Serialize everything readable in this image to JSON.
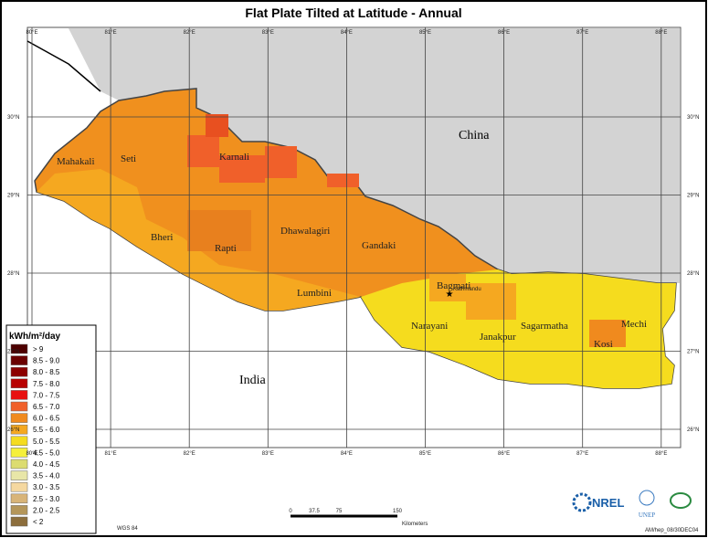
{
  "header": {
    "title": "Flat Plate Tilted at Latitude - Annual"
  },
  "map": {
    "longitudes": [
      "80°E",
      "81°E",
      "82°E",
      "83°E",
      "84°E",
      "85°E",
      "86°E",
      "87°E",
      "88°E"
    ],
    "latitudes": [
      "30°N",
      "29°N",
      "28°N",
      "27°N",
      "26°N"
    ],
    "countries": [
      "China",
      "India"
    ],
    "regions": [
      "Mahakali",
      "Seti",
      "Karnali",
      "Bheri",
      "Rapti",
      "Dhawalagiri",
      "Gandaki",
      "Lumbini",
      "Bagmati",
      "Narayani",
      "Janakpur",
      "Sagarmatha",
      "Kosi",
      "Mechi"
    ],
    "capital": "Kathmandu"
  },
  "legend": {
    "title": "kWh/m²/day",
    "items": [
      {
        "label": "> 9",
        "color": "#4d0000"
      },
      {
        "label": "8.5 - 9.0",
        "color": "#6b0000"
      },
      {
        "label": "8.0 - 8.5",
        "color": "#8c0000"
      },
      {
        "label": "7.5 - 8.0",
        "color": "#b80000"
      },
      {
        "label": "7.0 - 7.5",
        "color": "#e81010"
      },
      {
        "label": "6.5 - 7.0",
        "color": "#f0602a"
      },
      {
        "label": "6.0 - 6.5",
        "color": "#f08a1e"
      },
      {
        "label": "5.5 - 6.0",
        "color": "#f5a820"
      },
      {
        "label": "5.0 - 5.5",
        "color": "#f5dc1e"
      },
      {
        "label": "4.5 - 5.0",
        "color": "#f5f03a"
      },
      {
        "label": "4.0 - 4.5",
        "color": "#dcdc70"
      },
      {
        "label": "3.5 - 4.0",
        "color": "#e8e6a8"
      },
      {
        "label": "3.0 - 3.5",
        "color": "#f5d8a0"
      },
      {
        "label": "2.5 - 3.0",
        "color": "#d8b478"
      },
      {
        "label": "2.0 - 2.5",
        "color": "#b4965a"
      },
      {
        "label": "< 2",
        "color": "#8c6e3c"
      }
    ]
  },
  "scalebar": {
    "ticks": [
      "0",
      "37.5",
      "75",
      "150"
    ],
    "unit": "Kilometers"
  },
  "footer": {
    "datum": "WGS 84",
    "credit": "AM/hep_08/30DEC04",
    "logos": [
      "NREL",
      "UNEP"
    ]
  }
}
